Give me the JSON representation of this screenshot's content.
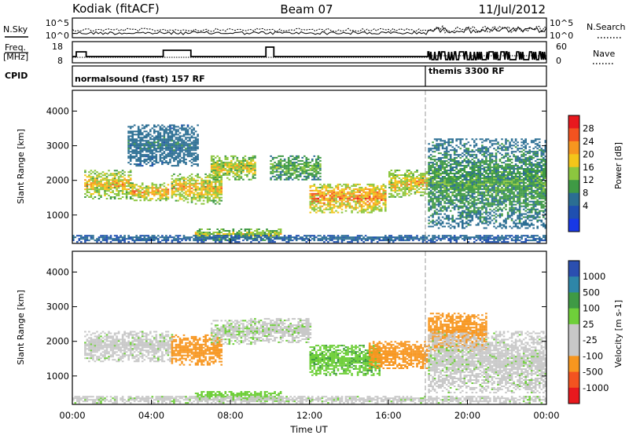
{
  "header": {
    "station": "Kodiak (fitACF)",
    "beam": "Beam 07",
    "date": "11/Jul/2012"
  },
  "top_panels": {
    "nsky_label": "N.Sky",
    "nsearch_label": "N.Search",
    "nsky_ticks": [
      "10^5",
      "10^0"
    ],
    "nsearch_ticks": [
      "10^5",
      "10^0"
    ],
    "freq_label": "Freq.",
    "freq_unit": "[MHz]",
    "freq_ticks": [
      "18",
      "8"
    ],
    "nave_label": "Nave",
    "nave_ticks": [
      "60",
      "0"
    ],
    "cpid_label": "CPID",
    "cpid_segments": [
      {
        "text": "normalsound (fast) 157 RF",
        "start_h": 0,
        "end_h": 18
      },
      {
        "text": "themis 3300 RF",
        "start_h": 18,
        "end_h": 24
      }
    ]
  },
  "chart_data": [
    {
      "type": "heatmap",
      "title": "Power",
      "xlabel": "Time UT",
      "ylabel": "Slant Range [km]",
      "colorbar_label": "Power [dB]",
      "colorbar_ticks": [
        "28",
        "24",
        "20",
        "16",
        "12",
        "8",
        "4"
      ],
      "colorbar_colors": [
        "#e8191e",
        "#f35320",
        "#f7961f",
        "#f4c61a",
        "#8cc63f",
        "#3f9a45",
        "#2b6e93",
        "#1f4fb0",
        "#1838e6"
      ],
      "y_ticks": [
        1000,
        2000,
        3000,
        4000
      ],
      "ylim": [
        180,
        4600
      ],
      "xlim": [
        0,
        24
      ],
      "x_ticks": [
        "00:00",
        "04:00",
        "08:00",
        "12:00",
        "16:00",
        "20:00",
        "00:00"
      ],
      "mode_change_h": 18,
      "echo_bands": [
        {
          "t0": 0.6,
          "t1": 3.0,
          "r0": 1450,
          "r1": 2300,
          "peak": 22
        },
        {
          "t0": 3.0,
          "t1": 4.8,
          "r0": 1400,
          "r1": 1900,
          "peak": 24
        },
        {
          "t0": 5.0,
          "t1": 7.5,
          "r0": 1300,
          "r1": 2200,
          "peak": 22
        },
        {
          "t0": 7.0,
          "t1": 9.2,
          "r0": 2000,
          "r1": 2700,
          "peak": 20
        },
        {
          "t0": 10.0,
          "t1": 12.5,
          "r0": 2000,
          "r1": 2700,
          "peak": 14
        },
        {
          "t0": 12.0,
          "t1": 15.8,
          "r0": 1050,
          "r1": 1900,
          "peak": 26
        },
        {
          "t0": 16.0,
          "t1": 18.0,
          "r0": 1500,
          "r1": 2300,
          "peak": 22
        },
        {
          "t0": 18.0,
          "t1": 24.0,
          "r0": 600,
          "r1": 3200,
          "peak": 12
        },
        {
          "t0": 2.8,
          "t1": 6.3,
          "r0": 2400,
          "r1": 3600,
          "peak": 8
        },
        {
          "t0": 6.2,
          "t1": 10.5,
          "r0": 250,
          "r1": 600,
          "peak": 18
        },
        {
          "t0": 0.0,
          "t1": 24.0,
          "r0": 200,
          "r1": 420,
          "peak": 6
        }
      ]
    },
    {
      "type": "heatmap",
      "title": "Velocity",
      "xlabel": "Time UT",
      "ylabel": "Slant Range [km]",
      "colorbar_label": "Velocity [m s-1]",
      "colorbar_ticks": [
        "1000",
        "500",
        "100",
        "25",
        "-25",
        "-100",
        "-500",
        "-1000"
      ],
      "colorbar_colors": [
        "#2b4fb0",
        "#2e86a8",
        "#3f9a45",
        "#6fcf3a",
        "#c8c8c8",
        "#c8c8c8",
        "#f7961f",
        "#f35320",
        "#e8191e"
      ],
      "y_ticks": [
        1000,
        2000,
        3000,
        4000
      ],
      "ylim": [
        180,
        4600
      ],
      "xlim": [
        0,
        24
      ],
      "x_ticks": [
        "00:00",
        "04:00",
        "08:00",
        "12:00",
        "16:00",
        "20:00",
        "00:00"
      ],
      "mode_change_h": 18,
      "echo_bands": [
        {
          "t0": 0.6,
          "t1": 5.0,
          "r0": 1400,
          "r1": 2300,
          "vel": 0
        },
        {
          "t0": 5.0,
          "t1": 7.5,
          "r0": 1300,
          "r1": 2200,
          "vel": -150
        },
        {
          "t0": 7.0,
          "t1": 9.2,
          "r0": 1900,
          "r1": 2600,
          "vel": 10
        },
        {
          "t0": 9.0,
          "t1": 12.0,
          "r0": 1950,
          "r1": 2650,
          "vel": 5
        },
        {
          "t0": 12.0,
          "t1": 15.5,
          "r0": 1000,
          "r1": 1900,
          "vel": 80
        },
        {
          "t0": 15.0,
          "t1": 18.0,
          "r0": 1200,
          "r1": 2000,
          "vel": -300
        },
        {
          "t0": 18.0,
          "t1": 21.0,
          "r0": 1700,
          "r1": 2800,
          "vel": -400
        },
        {
          "t0": 18.0,
          "t1": 24.0,
          "r0": 500,
          "r1": 2300,
          "vel": 0
        },
        {
          "t0": 6.2,
          "t1": 10.5,
          "r0": 250,
          "r1": 550,
          "vel": 60
        },
        {
          "t0": 0.0,
          "t1": 24.0,
          "r0": 200,
          "r1": 420,
          "vel": 0
        }
      ]
    }
  ]
}
